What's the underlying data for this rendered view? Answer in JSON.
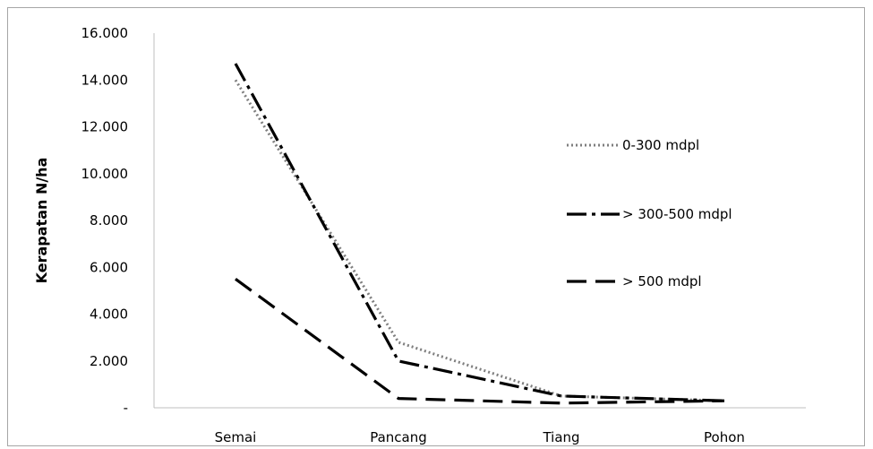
{
  "chart_data": {
    "type": "line",
    "title": "",
    "xlabel": "",
    "ylabel": "Kerapatan N/ha",
    "categories": [
      "Semai",
      "Pancang",
      "Tiang",
      "Pohon"
    ],
    "ylim": [
      0,
      16000
    ],
    "yticks": [
      0,
      2000,
      4000,
      6000,
      8000,
      10000,
      12000,
      14000,
      16000
    ],
    "ytick_labels": [
      "-",
      "2.000",
      "4.000",
      "6.000",
      "8.000",
      "10.000",
      "12.000",
      "14.000",
      "16.000"
    ],
    "grid": false,
    "legend_position": "right",
    "series": [
      {
        "name": "0-300 mdpl",
        "values": [
          14000,
          2800,
          500,
          300
        ],
        "dash": "dotted",
        "color": "#7f7f7f"
      },
      {
        "name": "> 300-500 mdpl",
        "values": [
          14700,
          2000,
          500,
          300
        ],
        "dash": "dash-dot",
        "color": "#000000"
      },
      {
        "name": "> 500 mdpl",
        "values": [
          5500,
          400,
          200,
          300
        ],
        "dash": "long-dash",
        "color": "#000000"
      }
    ]
  }
}
